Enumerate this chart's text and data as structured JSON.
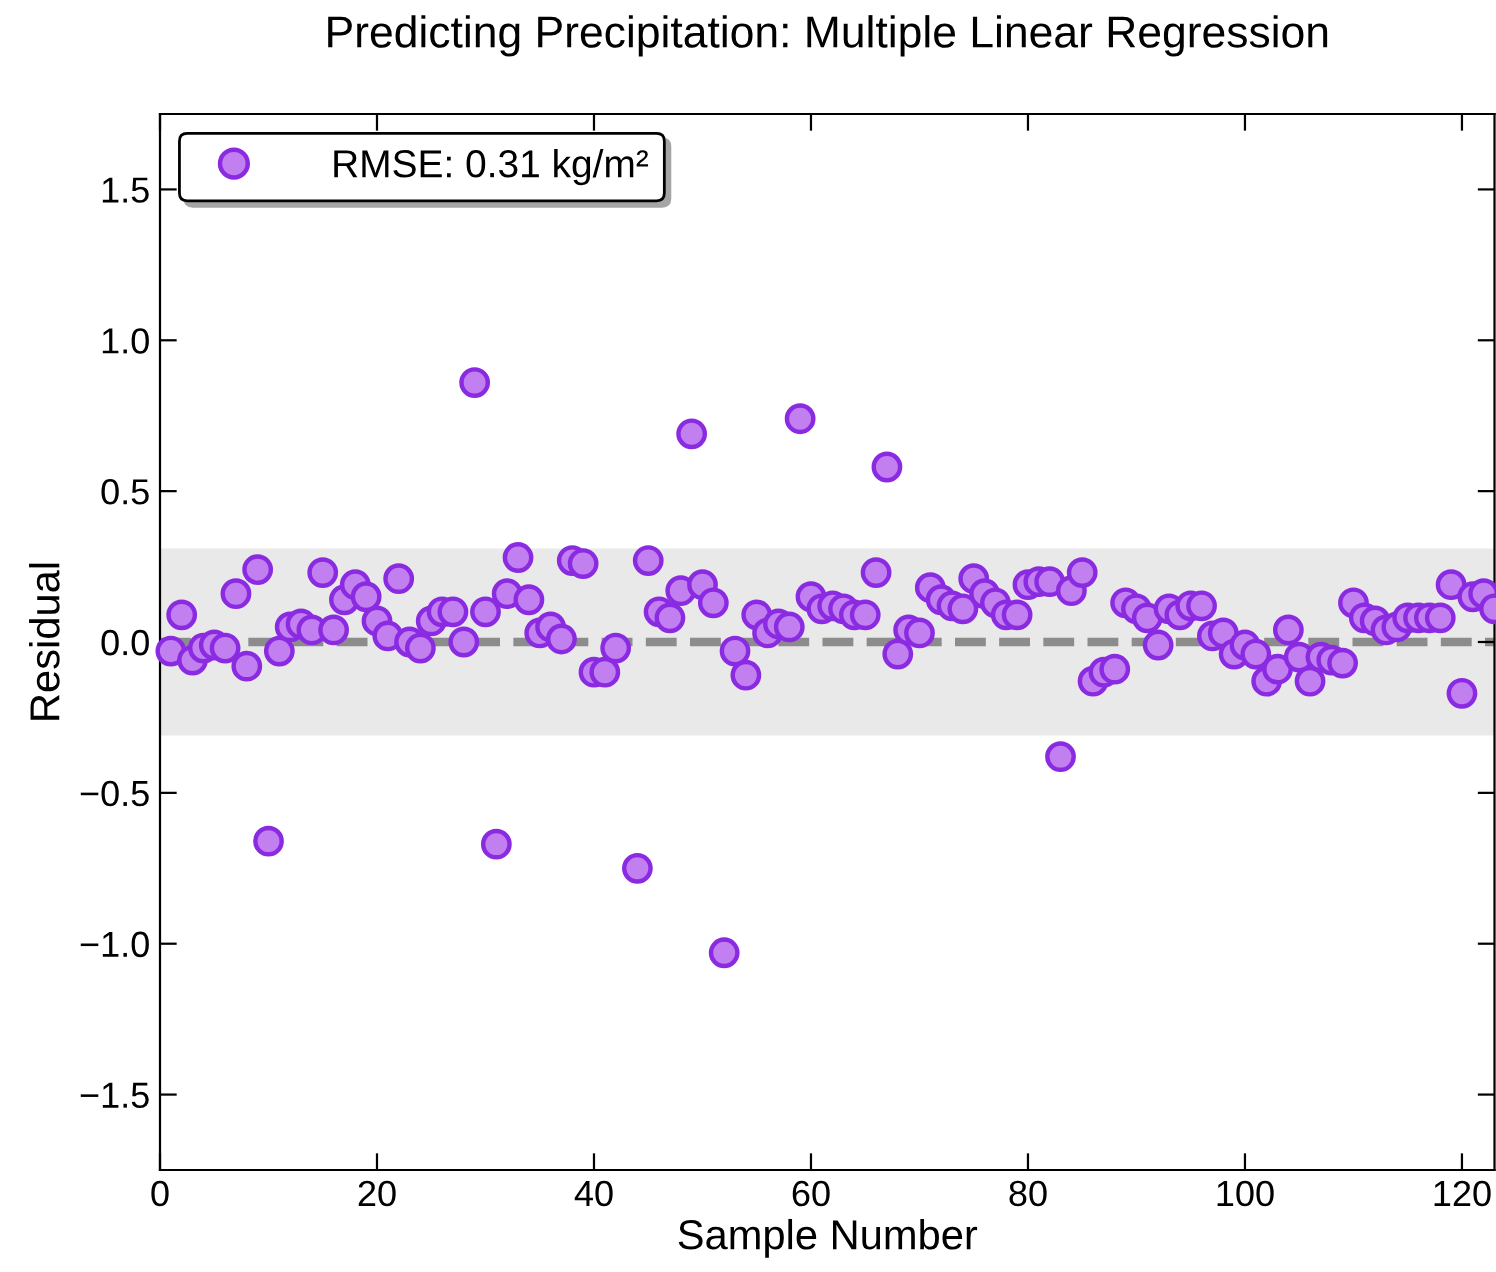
{
  "chart_data": {
    "type": "scatter",
    "title": "Predicting Precipitation: Multiple Linear Regression",
    "xlabel": "Sample Number",
    "ylabel": "Residual",
    "x": [
      1,
      2,
      3,
      4,
      5,
      6,
      7,
      8,
      9,
      10,
      11,
      12,
      13,
      14,
      15,
      16,
      17,
      18,
      19,
      20,
      21,
      22,
      23,
      24,
      25,
      26,
      27,
      28,
      29,
      30,
      31,
      32,
      33,
      34,
      35,
      36,
      37,
      38,
      39,
      40,
      41,
      42,
      44,
      45,
      46,
      47,
      48,
      49,
      50,
      51,
      52,
      53,
      54,
      55,
      56,
      57,
      58,
      59,
      60,
      61,
      62,
      63,
      64,
      65,
      66,
      67,
      68,
      69,
      70,
      71,
      72,
      73,
      74,
      75,
      76,
      77,
      78,
      79,
      80,
      81,
      82,
      83,
      84,
      85,
      86,
      87,
      88,
      89,
      90,
      91,
      92,
      93,
      94,
      95,
      96,
      97,
      98,
      99,
      100,
      101,
      102,
      103,
      104,
      105,
      106,
      107,
      108,
      109,
      110,
      111,
      112,
      113,
      114,
      115,
      116,
      117,
      118,
      119,
      120,
      121,
      122,
      123
    ],
    "series": [
      {
        "name": "RMSE: 0.31 kg/m²",
        "color": "#c27ff0",
        "values": [
          -0.03,
          0.09,
          -0.06,
          -0.02,
          -0.01,
          -0.02,
          0.16,
          -0.08,
          0.24,
          -0.66,
          -0.03,
          0.05,
          0.06,
          0.04,
          0.23,
          0.04,
          0.14,
          0.19,
          0.15,
          0.07,
          0.02,
          0.21,
          0.0,
          -0.02,
          0.07,
          0.1,
          0.1,
          0.0,
          0.86,
          0.1,
          -0.67,
          0.16,
          0.28,
          0.14,
          0.03,
          0.05,
          0.01,
          0.27,
          0.26,
          -0.1,
          -0.1,
          -0.02,
          -0.75,
          0.27,
          0.1,
          0.08,
          0.17,
          0.69,
          0.19,
          0.13,
          -1.03,
          -0.03,
          -0.11,
          0.09,
          0.03,
          0.06,
          0.05,
          0.74,
          0.15,
          0.11,
          0.12,
          0.11,
          0.09,
          0.09,
          0.23,
          0.58,
          -0.04,
          0.04,
          0.03,
          0.18,
          0.14,
          0.12,
          0.11,
          0.21,
          0.16,
          0.13,
          0.09,
          0.09,
          0.19,
          0.2,
          0.2,
          -0.38,
          0.17,
          0.23,
          -0.13,
          -0.1,
          -0.09,
          0.13,
          0.11,
          0.08,
          -0.01,
          0.11,
          0.09,
          0.12,
          0.12,
          0.02,
          0.03,
          -0.04,
          -0.01,
          -0.04,
          -0.13,
          -0.09,
          0.04,
          -0.05,
          -0.13,
          -0.05,
          -0.06,
          -0.07,
          0.13,
          0.08,
          0.07,
          0.04,
          0.05,
          0.08,
          0.08,
          0.08,
          0.08,
          0.19,
          -0.17,
          0.15,
          0.16,
          0.11
        ]
      }
    ],
    "xlim": [
      0,
      123
    ],
    "xticks": [
      0,
      20,
      40,
      60,
      80,
      100,
      120
    ],
    "ylim": [
      -1.75,
      1.75
    ],
    "yticks": [
      {
        "value": -1.5,
        "label": "−1.5"
      },
      {
        "value": -1.0,
        "label": "−1.0"
      },
      {
        "value": -0.5,
        "label": "−0.5"
      },
      {
        "value": 0,
        "label": "0.0"
      },
      {
        "value": 0.5,
        "label": "0.5"
      },
      {
        "value": 1.0,
        "label": "1.0"
      },
      {
        "value": 1.5,
        "label": "1.5"
      }
    ],
    "ref_lines": [
      {
        "axis": "y",
        "value": 0,
        "color": "#8c8c8c",
        "line_style": "dashed"
      }
    ],
    "bands": [
      {
        "axis": "y",
        "from": -0.31,
        "to": 0.31,
        "color": "#e9e9e9"
      }
    ],
    "marker": "circle",
    "legend": "top left",
    "grid": false
  }
}
